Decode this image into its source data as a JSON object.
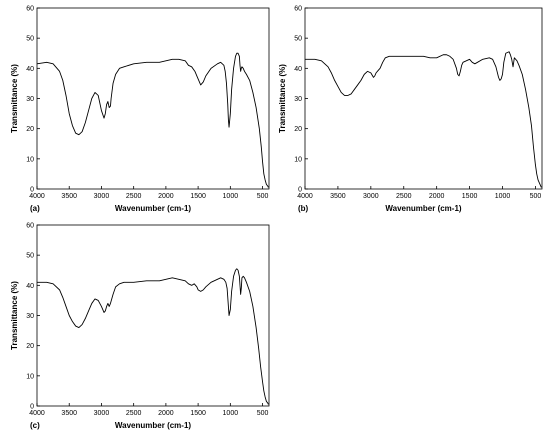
{
  "chart_data": [
    {
      "type": "line",
      "panel_label": "(a)",
      "xlabel": "Wavenumber (cm-1)",
      "ylabel": "Transmittance (%)",
      "xlim": [
        4000,
        400
      ],
      "ylim": [
        0,
        60
      ],
      "x_ticks": [
        4000,
        3500,
        3000,
        2500,
        2000,
        1500,
        1000,
        500
      ],
      "y_ticks": [
        0,
        10,
        20,
        30,
        40,
        50,
        60
      ],
      "grid": false,
      "line_color": "#000000",
      "series": [
        {
          "x": [
            4000,
            3850,
            3750,
            3650,
            3600,
            3550,
            3500,
            3450,
            3400,
            3350,
            3300,
            3250,
            3200,
            3150,
            3100,
            3050,
            3000,
            2960,
            2940,
            2920,
            2900,
            2880,
            2860,
            2850,
            2820,
            2780,
            2720,
            2650,
            2500,
            2300,
            2100,
            2000,
            1900,
            1800,
            1700,
            1650,
            1600,
            1550,
            1500,
            1460,
            1420,
            1380,
            1300,
            1200,
            1150,
            1100,
            1080,
            1060,
            1040,
            1030,
            1020,
            1000,
            980,
            950,
            920,
            900,
            880,
            860,
            850,
            840,
            830,
            820,
            800,
            780,
            750,
            700,
            650,
            600,
            550,
            520,
            500,
            480,
            460,
            440,
            420,
            410
          ],
          "y": [
            41.5,
            42,
            41.5,
            39,
            36,
            31,
            25,
            21,
            18.5,
            18,
            19,
            22,
            26,
            30,
            32,
            31,
            26,
            23.5,
            25,
            28,
            29,
            27,
            27.5,
            30,
            35,
            38,
            40,
            40.5,
            41.5,
            42,
            42,
            42.5,
            43,
            43,
            42.5,
            41,
            40.5,
            39,
            36.5,
            34.5,
            35.5,
            37.5,
            40,
            41.5,
            42,
            41,
            39,
            35,
            28,
            23,
            20.5,
            25,
            33,
            40,
            44,
            45,
            45,
            44,
            41,
            39,
            40,
            40.5,
            40,
            39,
            38,
            36,
            32,
            27,
            20,
            14,
            9,
            5,
            3,
            1.5,
            1,
            0.5
          ]
        }
      ]
    },
    {
      "type": "line",
      "panel_label": "(b)",
      "xlabel": "Wavenumber (cm-1)",
      "ylabel": "Transmittance (%)",
      "xlim": [
        4000,
        400
      ],
      "ylim": [
        0,
        60
      ],
      "x_ticks": [
        4000,
        3500,
        3000,
        2500,
        2000,
        1500,
        1000,
        500
      ],
      "y_ticks": [
        0,
        10,
        20,
        30,
        40,
        50,
        60
      ],
      "grid": false,
      "line_color": "#000000",
      "series": [
        {
          "x": [
            4000,
            3850,
            3750,
            3650,
            3600,
            3550,
            3500,
            3450,
            3400,
            3350,
            3300,
            3250,
            3200,
            3150,
            3100,
            3050,
            3000,
            2960,
            2940,
            2920,
            2900,
            2880,
            2860,
            2820,
            2780,
            2720,
            2650,
            2500,
            2300,
            2200,
            2100,
            2000,
            1900,
            1850,
            1800,
            1750,
            1700,
            1680,
            1660,
            1640,
            1620,
            1600,
            1550,
            1500,
            1460,
            1420,
            1380,
            1300,
            1200,
            1150,
            1100,
            1060,
            1040,
            1020,
            1000,
            980,
            950,
            900,
            880,
            860,
            840,
            830,
            820,
            800,
            780,
            750,
            700,
            650,
            600,
            560,
            530,
            500,
            480,
            460,
            440,
            420,
            410
          ],
          "y": [
            43,
            43,
            42.5,
            40.5,
            38.5,
            36,
            34,
            32,
            31,
            31,
            31.5,
            33,
            34.5,
            36,
            38,
            39,
            38.5,
            37,
            37.5,
            38.5,
            39,
            39.5,
            40,
            42,
            43.5,
            44,
            44,
            44,
            44,
            44,
            43.5,
            43.5,
            44.5,
            44.5,
            44,
            43,
            40,
            38,
            37.5,
            39,
            41,
            42,
            42.5,
            43,
            42,
            41.5,
            42,
            43,
            43.5,
            43,
            40.5,
            37,
            36,
            36.5,
            38,
            42,
            45,
            45.5,
            44.5,
            43,
            40.5,
            42,
            43.5,
            43,
            42.5,
            41,
            38,
            33,
            27,
            21,
            14,
            8,
            5,
            3,
            2,
            1,
            0.5
          ]
        }
      ]
    },
    {
      "type": "line",
      "panel_label": "(c)",
      "xlabel": "Wavenumber (cm-1)",
      "ylabel": "Transmittance (%)",
      "xlim": [
        4000,
        400
      ],
      "ylim": [
        0,
        60
      ],
      "x_ticks": [
        4000,
        3500,
        3000,
        2500,
        2000,
        1500,
        1000,
        500
      ],
      "y_ticks": [
        0,
        10,
        20,
        30,
        40,
        50,
        60
      ],
      "grid": false,
      "line_color": "#000000",
      "series": [
        {
          "x": [
            4000,
            3850,
            3750,
            3650,
            3600,
            3550,
            3500,
            3450,
            3400,
            3350,
            3300,
            3250,
            3200,
            3150,
            3100,
            3050,
            3000,
            2960,
            2940,
            2920,
            2900,
            2880,
            2860,
            2820,
            2780,
            2720,
            2650,
            2500,
            2300,
            2100,
            2000,
            1900,
            1800,
            1700,
            1650,
            1600,
            1560,
            1520,
            1500,
            1460,
            1420,
            1380,
            1300,
            1200,
            1150,
            1100,
            1070,
            1050,
            1040,
            1030,
            1020,
            1000,
            980,
            950,
            920,
            900,
            880,
            860,
            850,
            840,
            830,
            820,
            800,
            780,
            750,
            700,
            650,
            600,
            560,
            530,
            500,
            480,
            460,
            440,
            420,
            410
          ],
          "y": [
            41,
            41,
            40.5,
            38.5,
            36,
            33,
            30,
            28,
            26.5,
            26,
            27,
            29,
            31.5,
            34,
            35.5,
            35,
            33,
            31,
            31.5,
            33,
            34,
            33,
            34,
            37,
            39.5,
            40.5,
            41,
            41,
            41.5,
            41.5,
            42,
            42.5,
            42,
            41.5,
            40.5,
            40,
            40.5,
            39.5,
            38.5,
            38,
            38.5,
            39.5,
            41,
            42,
            42.5,
            42,
            41,
            39,
            36,
            33,
            30,
            32,
            38,
            43,
            45,
            45.5,
            45,
            43,
            40,
            37,
            39,
            42.5,
            43,
            42.5,
            41,
            38,
            33,
            26,
            19,
            13,
            8,
            5,
            3,
            1.5,
            1,
            0.5
          ]
        }
      ]
    }
  ]
}
